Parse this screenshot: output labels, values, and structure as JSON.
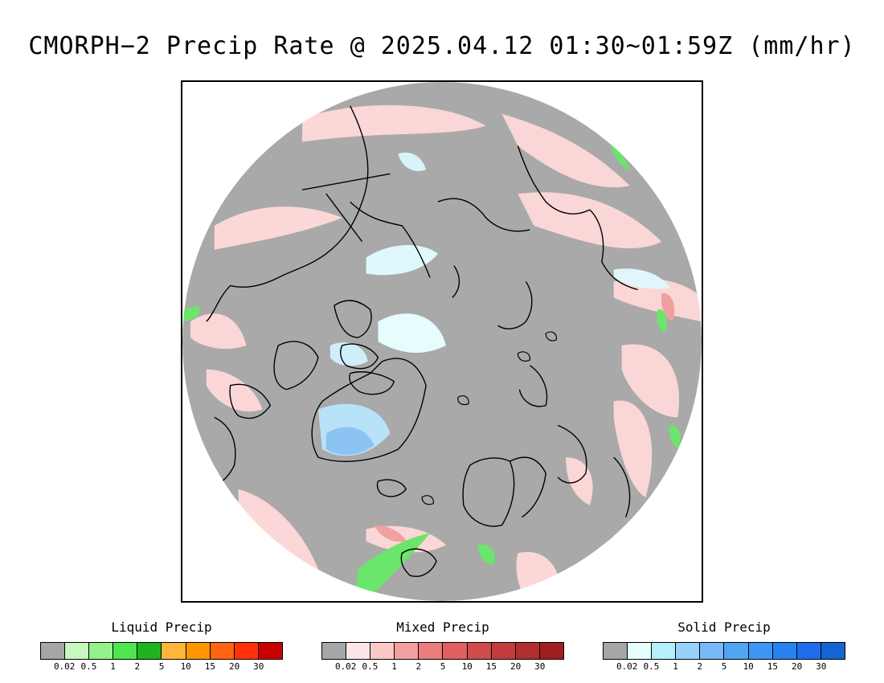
{
  "title": "CMORPH−2 Precip Rate @ 2025.04.12 01:30~01:59Z (mm/hr)",
  "map": {
    "ocean_no_precip_color": "#a9a9a9",
    "coastline_color": "#000000"
  },
  "legends": [
    {
      "title": "Liquid Precip",
      "colors": [
        "#a6a6a6",
        "#c8f7c0",
        "#96f08c",
        "#50e650",
        "#1eb41e",
        "#ffb43c",
        "#ff9600",
        "#ff6414",
        "#ff320a",
        "#c80000"
      ],
      "ticks": [
        "0.02",
        "0.5",
        "1",
        "2",
        "5",
        "10",
        "15",
        "20",
        "30"
      ]
    },
    {
      "title": "Mixed Precip",
      "colors": [
        "#a6a6a6",
        "#ffe6e6",
        "#ffc8c8",
        "#f5a0a0",
        "#eb7d7d",
        "#e15f5f",
        "#d24b4b",
        "#c33c3c",
        "#b42d2d",
        "#a01e1e"
      ],
      "ticks": [
        "0.02",
        "0.5",
        "1",
        "2",
        "5",
        "10",
        "15",
        "20",
        "30"
      ]
    },
    {
      "title": "Solid Precip",
      "colors": [
        "#a6a6a6",
        "#e6ffff",
        "#b4f0fa",
        "#96d2fa",
        "#78b9fa",
        "#50a5f5",
        "#3c96f5",
        "#2882f0",
        "#1e6eeb",
        "#1464d2"
      ],
      "ticks": [
        "0.02",
        "0.5",
        "1",
        "2",
        "5",
        "10",
        "15",
        "20",
        "30"
      ]
    }
  ]
}
